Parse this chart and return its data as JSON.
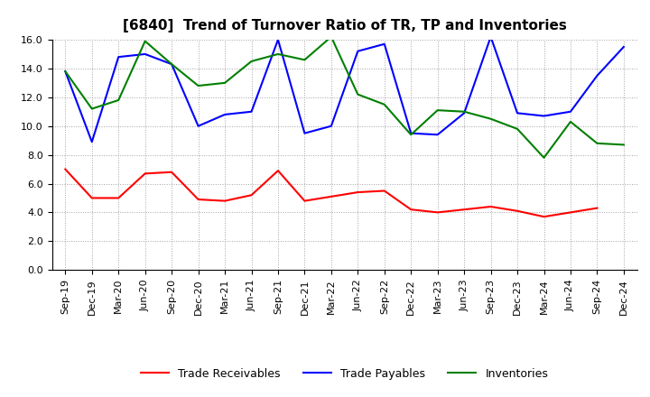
{
  "title": "[6840]  Trend of Turnover Ratio of TR, TP and Inventories",
  "x_labels": [
    "Sep-19",
    "Dec-19",
    "Mar-20",
    "Jun-20",
    "Sep-20",
    "Dec-20",
    "Mar-21",
    "Jun-21",
    "Sep-21",
    "Dec-21",
    "Mar-22",
    "Jun-22",
    "Sep-22",
    "Dec-22",
    "Mar-23",
    "Jun-23",
    "Sep-23",
    "Dec-23",
    "Mar-24",
    "Jun-24",
    "Sep-24",
    "Dec-24"
  ],
  "trade_receivables": [
    7.0,
    5.0,
    5.0,
    6.7,
    6.8,
    4.9,
    4.8,
    5.2,
    6.9,
    4.8,
    5.1,
    5.4,
    5.5,
    4.2,
    4.0,
    4.2,
    4.4,
    4.1,
    3.7,
    4.0,
    4.3,
    null
  ],
  "trade_payables": [
    13.8,
    8.9,
    14.8,
    15.0,
    14.3,
    10.0,
    10.8,
    11.0,
    16.0,
    9.5,
    10.0,
    15.2,
    15.7,
    9.5,
    9.4,
    10.9,
    16.2,
    10.9,
    10.7,
    11.0,
    13.5,
    15.5
  ],
  "inventories": [
    13.8,
    11.2,
    11.8,
    15.9,
    14.3,
    12.8,
    13.0,
    14.5,
    15.0,
    14.6,
    16.2,
    12.2,
    11.5,
    9.4,
    11.1,
    11.0,
    10.5,
    9.8,
    7.8,
    10.3,
    8.8,
    8.7
  ],
  "ylim": [
    0.0,
    16.0
  ],
  "yticks": [
    0.0,
    2.0,
    4.0,
    6.0,
    8.0,
    10.0,
    12.0,
    14.0,
    16.0
  ],
  "tr_color": "#ff0000",
  "tp_color": "#0000ff",
  "inv_color": "#008000",
  "bg_color": "#ffffff",
  "grid_color": "#999999",
  "legend_labels": [
    "Trade Receivables",
    "Trade Payables",
    "Inventories"
  ],
  "title_fontsize": 11,
  "tick_fontsize": 8,
  "legend_fontsize": 9,
  "linewidth": 1.5
}
